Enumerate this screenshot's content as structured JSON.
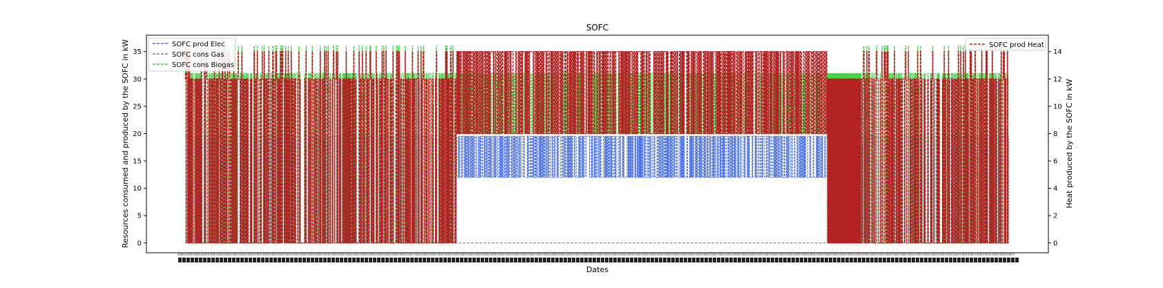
{
  "chart_data": {
    "type": "line",
    "title": "SOFC",
    "xlabel": "Dates",
    "ylabel_left": "Resources consumed and produced by the SOFC in kW",
    "ylabel_right": "Heat produced by the SOFC in kW",
    "ylim_left": [
      -1.8,
      38
    ],
    "ylim_right": [
      -0.72,
      15.2
    ],
    "yticks_left": [
      0,
      5,
      10,
      15,
      20,
      25,
      30,
      35
    ],
    "yticks_right": [
      0,
      2,
      4,
      6,
      8,
      10,
      12,
      14
    ],
    "grid": false,
    "legend_left_placement": "top-left",
    "legend_right_placement": "top-right",
    "x_start": 0,
    "x_end": 1000,
    "series": [
      {
        "name": "SOFC prod Elec",
        "axis": "left",
        "color": "#4169e1",
        "style": "dashed"
      },
      {
        "name": "SOFC cons Gas",
        "axis": "left",
        "color": "#808080",
        "style": "dashed"
      },
      {
        "name": "SOFC cons Biogas",
        "axis": "left",
        "color": "#32cd32",
        "style": "dashed"
      },
      {
        "name": "SOFC prod Heat",
        "axis": "right",
        "color": "#b22222",
        "style": "dashed"
      }
    ],
    "regimes": [
      {
        "from": 0,
        "to": 330,
        "kind": "intermittent",
        "elec_on": 19.5,
        "biogas_on": 31,
        "heat_on": 12
      },
      {
        "from": 330,
        "to": 780,
        "kind": "continuous",
        "elec_range": [
          12,
          19.5
        ],
        "biogas_range": [
          20,
          31
        ],
        "heat_range": [
          8,
          14
        ]
      },
      {
        "from": 780,
        "to": 820,
        "kind": "cycling",
        "elec_on": 19,
        "biogas_on": 31,
        "heat_on": 12
      },
      {
        "from": 820,
        "to": 1000,
        "kind": "intermittent",
        "elec_on": 19.5,
        "biogas_on": 31,
        "heat_on": 12
      }
    ],
    "end_value": 19.5
  }
}
